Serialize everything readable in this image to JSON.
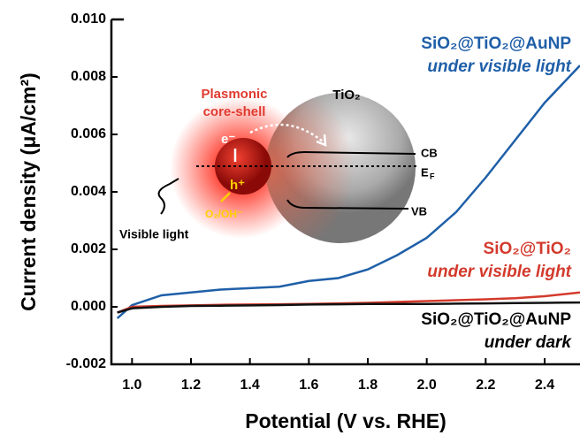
{
  "chart_data": {
    "type": "line",
    "xlabel": "Potential (V vs. RHE)",
    "ylabel": "Current density (μA/cm²)",
    "xlim": [
      0.93,
      2.52
    ],
    "ylim": [
      -0.002,
      0.01
    ],
    "xticks": [
      {
        "value": 1.0,
        "label": "1.0"
      },
      1.2,
      1.4,
      1.6,
      1.8,
      {
        "value": 2.0,
        "label": "2.0"
      },
      2.2,
      2.4
    ],
    "yticks": [
      -0.002,
      {
        "value": 0.0,
        "label": "0.000"
      },
      0.002,
      0.004,
      0.006,
      0.008,
      {
        "value": 0.01,
        "label": "0.010"
      }
    ],
    "x": [
      0.95,
      1.0,
      1.1,
      1.2,
      1.3,
      1.4,
      1.5,
      1.6,
      1.7,
      1.8,
      1.9,
      2.0,
      2.1,
      2.2,
      2.3,
      2.4,
      2.52
    ],
    "series": [
      {
        "name": "SiO₂@TiO₂@AuNP",
        "condition": "under visible light",
        "color": "#1f5fa8",
        "values": [
          -0.0004,
          6e-05,
          0.0004,
          0.0005,
          0.0006,
          0.00065,
          0.0007,
          0.0009,
          0.001,
          0.0013,
          0.0018,
          0.0024,
          0.0033,
          0.0045,
          0.0058,
          0.0071,
          0.0084
        ]
      },
      {
        "name": "SiO₂@TiO₂",
        "condition": "under visible light",
        "color": "#d33a2c",
        "values": [
          -0.0002,
          0.0,
          3e-05,
          5e-05,
          7e-05,
          8e-05,
          9e-05,
          0.0001,
          0.00012,
          0.00014,
          0.00017,
          0.0002,
          0.00023,
          0.00026,
          0.0003,
          0.00037,
          0.0005
        ]
      },
      {
        "name": "SiO₂@TiO₂@AuNP",
        "condition": "under dark",
        "color": "#111111",
        "values": [
          -0.0002,
          -5e-05,
          0.0,
          3e-05,
          4e-05,
          5e-05,
          6e-05,
          8e-05,
          9e-05,
          0.0001,
          0.0001,
          0.0001,
          0.00011,
          0.00012,
          0.00013,
          0.00014,
          0.00015
        ]
      }
    ],
    "inset": {
      "plasmonic": "Plasmonic",
      "core_shell": "core-shell",
      "tio2": "TiO₂",
      "cb": "CB",
      "ef": "E",
      "ef_sub": "F",
      "vb": "VB",
      "electron": "e⁻",
      "hole": "h⁺",
      "species": "O₂/OH⁻",
      "light": "Visible light"
    }
  }
}
